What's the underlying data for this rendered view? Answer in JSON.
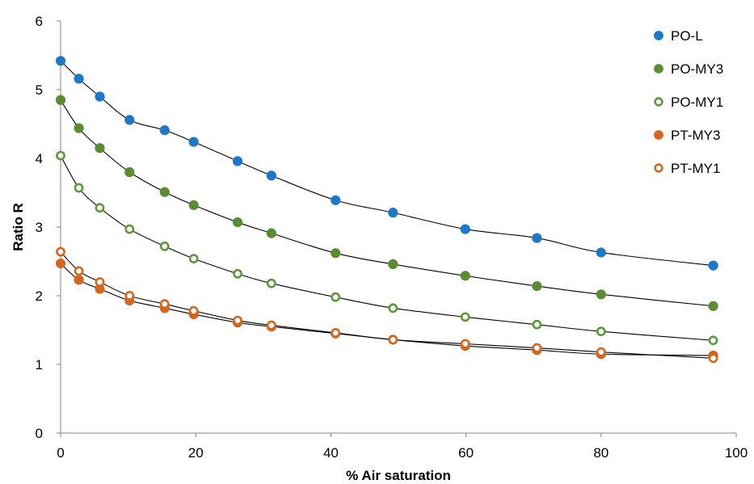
{
  "chart_data": {
    "type": "scatter",
    "xlabel": "% Air saturation",
    "ylabel": "Ratio R",
    "xlim": [
      0,
      100
    ],
    "ylim": [
      0,
      6
    ],
    "xticks": [
      0,
      20,
      40,
      60,
      80,
      100
    ],
    "yticks": [
      0,
      1,
      2,
      3,
      4,
      5,
      6
    ],
    "grid": false,
    "legend": "top-right",
    "x": [
      0,
      2.7,
      5.8,
      10.2,
      15.4,
      19.7,
      26.2,
      31.2,
      40.7,
      49.2,
      59.9,
      70.5,
      80.0,
      96.6
    ],
    "series": [
      {
        "name": "PO-L",
        "marker": "filled",
        "color": "#1f77c8",
        "values": [
          5.42,
          5.16,
          4.9,
          4.56,
          4.41,
          4.24,
          3.96,
          3.75,
          3.39,
          3.21,
          2.97,
          2.84,
          2.63,
          2.44
        ]
      },
      {
        "name": "PO-MY3",
        "marker": "filled",
        "color": "#5b8c32",
        "values": [
          4.85,
          4.44,
          4.15,
          3.8,
          3.51,
          3.32,
          3.07,
          2.91,
          2.62,
          2.46,
          2.29,
          2.14,
          2.02,
          1.85
        ]
      },
      {
        "name": "PO-MY1",
        "marker": "open",
        "color": "#5b9a3c",
        "values": [
          4.04,
          3.57,
          3.28,
          2.97,
          2.72,
          2.54,
          2.32,
          2.18,
          1.98,
          1.82,
          1.69,
          1.58,
          1.48,
          1.35
        ]
      },
      {
        "name": "PT-MY3",
        "marker": "filled",
        "color": "#d4661e",
        "values": [
          2.47,
          2.23,
          2.1,
          1.93,
          1.82,
          1.73,
          1.61,
          1.55,
          1.45,
          1.36,
          1.27,
          1.21,
          1.15,
          1.13
        ]
      },
      {
        "name": "PT-MY1",
        "marker": "open",
        "color": "#d4661e",
        "values": [
          2.64,
          2.36,
          2.2,
          2.0,
          1.88,
          1.78,
          1.64,
          1.57,
          1.46,
          1.36,
          1.3,
          1.24,
          1.18,
          1.09
        ]
      }
    ],
    "fit_lines": true
  },
  "colors": {
    "axis": "#868686",
    "fit_line": "#000000"
  }
}
